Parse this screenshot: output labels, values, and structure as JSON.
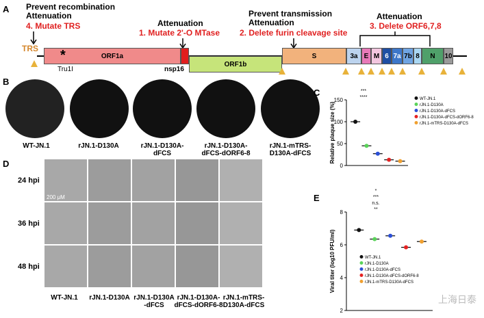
{
  "panel_a": {
    "letter": "A",
    "left_header": [
      "Prevent recombination",
      "Attenuation"
    ],
    "left_action": "4. Mutate TRS",
    "mid_header": "Attenuation",
    "mid_action": "1. Mutate 2'-O MTase",
    "right_header": [
      "Prevent transmission",
      "Attenuation"
    ],
    "right_action": "2. Delete furin cleavage site",
    "far_header": "Attenuation",
    "far_action": "3. Delete ORF6,7,8",
    "trs_label": "TRS",
    "genes": {
      "orf1a": "ORF1a",
      "orf1b": "ORF1b",
      "s": "S",
      "g3a": "3a",
      "e": "E",
      "m": "M",
      "g6": "6",
      "g7a": "7a",
      "g7b": "7b",
      "g8": "8",
      "n": "N",
      "g10": "10"
    },
    "tru1i": "Tru1I",
    "nsp16": "nsp16",
    "star": "*",
    "colors": {
      "orf1a": "#f08a8a",
      "orf1b": "#c6e47a",
      "s": "#f2b27c",
      "g3a": "#bcd3ee",
      "e": "#e879b8",
      "m": "#f3c6df",
      "g6": "#1f4ea3",
      "g7a": "#3d77c9",
      "g7b": "#6fa4e2",
      "g8": "#aad7f2",
      "n": "#4fa06a",
      "g10": "#9a9a9a",
      "nsp16": "#e11e1e",
      "trs": "#e8b23a"
    }
  },
  "panel_b": {
    "letter": "B",
    "captions": [
      "WT-JN.1",
      "rJN.1-D130A",
      "rJN.1-D130A-dFCS",
      "rJN.1-D130A-dFCS-dORF6-8",
      "rJN.1-mTRS-D130A-dFCS"
    ],
    "caption_lines": [
      [
        "WT-JN.1"
      ],
      [
        "rJN.1-D130A"
      ],
      [
        "rJN.1-D130A-",
        "dFCS"
      ],
      [
        "rJN.1-D130A-",
        "dFCS-dORF6-8"
      ],
      [
        "rJN.1-mTRS-",
        "D130A-dFCS"
      ]
    ]
  },
  "panel_d": {
    "letter": "D",
    "rows": [
      "24 hpi",
      "36 hpi",
      "48 hpi"
    ],
    "scale_bar": "200 μM",
    "captions": [
      [
        "WT-JN.1"
      ],
      [
        "rJN.1-D130A"
      ],
      [
        "rJN.1-D130A",
        "-dFCS"
      ],
      [
        "rJN.1-D130A-",
        "dFCS-dORF6-8"
      ],
      [
        "rJN.1-mTRS-",
        "D130A-dFCS"
      ]
    ]
  },
  "chart_data": [
    {
      "panel": "C",
      "type": "scatter",
      "ylabel": "Relative plaque size (%)",
      "ylim": [
        0,
        150
      ],
      "yticks": [
        0,
        50,
        100,
        150
      ],
      "categories": [
        "WT-JN.1",
        "rJN.1-D130A",
        "rJN.1-D130A-dFCS",
        "rJN.1-D130A-dFCS-dORF6-8",
        "rJN.1-mTRS-D130A-dFCS"
      ],
      "colors": [
        "#111111",
        "#5ad35a",
        "#2b4fd6",
        "#e52222",
        "#f0a030"
      ],
      "approx_means": [
        100,
        45,
        27,
        13,
        10
      ],
      "significance": [
        "****",
        "***",
        "****",
        "****",
        "**",
        "*",
        "n.s."
      ],
      "legend": [
        "WT-JN.1",
        "rJN.1-D130A",
        "rJN.1-D130A-dFCS",
        "rJN.1-D130A-dFCS-dORF6-8",
        "rJN.1-mTRS-D130A-dFCS"
      ]
    },
    {
      "panel": "E",
      "type": "scatter",
      "ylabel": "Viral titer (log10 PFU/ml)",
      "ylim": [
        2,
        8
      ],
      "yticks": [
        2,
        4,
        6,
        8
      ],
      "categories": [
        "WT-JN.1",
        "rJN.1-D130A",
        "rJN.1-D130A-dFCS",
        "rJN.1-D130A-dFCS-dORF6-8",
        "rJN.1-mTRS-D130A-dFCS"
      ],
      "colors": [
        "#111111",
        "#5ad35a",
        "#2b4fd6",
        "#e52222",
        "#f0a030"
      ],
      "approx_means": [
        6.9,
        6.35,
        6.55,
        5.85,
        6.2
      ],
      "significance": [
        "**",
        "n.s.",
        "***",
        "*",
        "n.s.",
        "*",
        "n.s.",
        "**",
        "n.s."
      ],
      "legend": [
        "WT-JN.1",
        "rJN.1-D130A",
        "rJN.1-D130A-dFCS",
        "rJN.1-D130A-dFCS-dORF6-8",
        "rJN.1-mTRS-D130A-dFCS"
      ]
    }
  ],
  "watermark": "上海日泰"
}
